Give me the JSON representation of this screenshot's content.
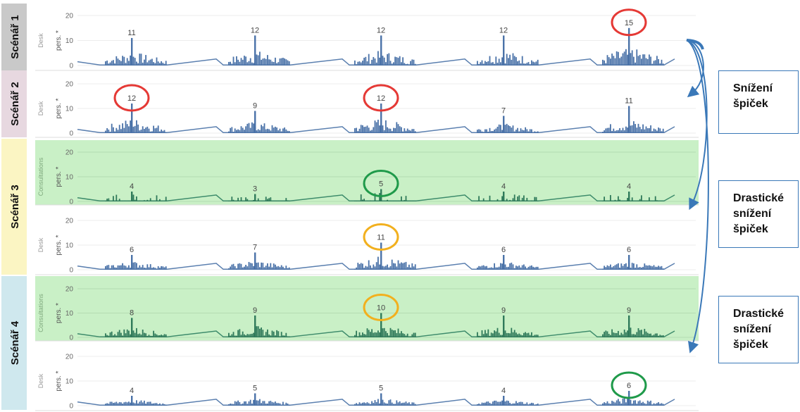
{
  "y_ticks": [
    "0",
    "10",
    "20"
  ],
  "y_unit": "pers. *",
  "colors": {
    "desk_bar": "#4a72a8",
    "consult_bar": "#2f7a5a",
    "consult_bg": "#c9f0c6",
    "red_circle": "#e53935",
    "green_circle": "#1f9a4a",
    "orange_circle": "#f2b01e",
    "arrow": "#3a78b8"
  },
  "scenarios": [
    {
      "label": "Scénář 1",
      "color": "#c9c9c9"
    },
    {
      "label": "Scénář 2",
      "color": "#e7d8e0"
    },
    {
      "label": "Scénář 3",
      "color": "#fbf5c3"
    },
    {
      "label": "Scénář 4",
      "color": "#cfe8ee"
    }
  ],
  "notes": [
    {
      "text": "Snížení špiček"
    },
    {
      "text": "Drastické snížení špiček"
    },
    {
      "text": "Drastické snížení špiček"
    }
  ],
  "chart_data": [
    {
      "type": "bar",
      "scenario": "Scénář 1",
      "panel_label": "Desk",
      "ylim": [
        0,
        20
      ],
      "peaks": [
        11,
        12,
        12,
        12,
        15
      ],
      "highlight": [
        {
          "index": 4,
          "color": "red"
        }
      ]
    },
    {
      "type": "bar",
      "scenario": "Scénář 2",
      "panel_label": "Desk",
      "ylim": [
        0,
        20
      ],
      "peaks": [
        12,
        9,
        12,
        7,
        11
      ],
      "highlight": [
        {
          "index": 0,
          "color": "red"
        },
        {
          "index": 2,
          "color": "red"
        }
      ]
    },
    {
      "type": "bar",
      "scenario": "Scénář 3",
      "panel_label": "Consultations",
      "ylim": [
        0,
        20
      ],
      "peaks": [
        4,
        3,
        5,
        4,
        4
      ],
      "highlight": [
        {
          "index": 2,
          "color": "green"
        }
      ]
    },
    {
      "type": "bar",
      "scenario": "Scénář 3",
      "panel_label": "Desk",
      "ylim": [
        0,
        20
      ],
      "peaks": [
        6,
        7,
        11,
        6,
        6
      ],
      "highlight": [
        {
          "index": 2,
          "color": "orange"
        }
      ]
    },
    {
      "type": "bar",
      "scenario": "Scénář 4",
      "panel_label": "Consultations",
      "ylim": [
        0,
        20
      ],
      "peaks": [
        8,
        9,
        10,
        9,
        9
      ],
      "highlight": [
        {
          "index": 2,
          "color": "orange"
        }
      ]
    },
    {
      "type": "bar",
      "scenario": "Scénář 4",
      "panel_label": "Desk",
      "ylim": [
        0,
        20
      ],
      "peaks": [
        4,
        5,
        5,
        4,
        6
      ],
      "highlight": [
        {
          "index": 4,
          "color": "green"
        }
      ]
    }
  ]
}
